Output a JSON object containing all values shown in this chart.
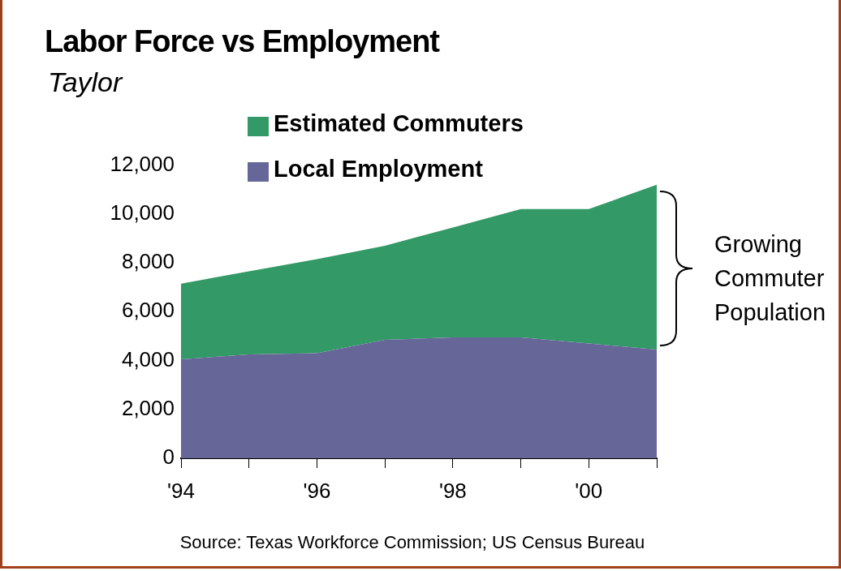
{
  "chart_data": {
    "type": "area",
    "title": "Labor Force vs Employment",
    "subtitle": "Taylor",
    "categories": [
      "'94",
      null,
      "'96",
      null,
      "'98",
      null,
      "'00",
      null
    ],
    "stacked": true,
    "series": [
      {
        "name": "Local Employment",
        "color": "#666699",
        "values": [
          4050,
          4250,
          4300,
          4850,
          4950,
          4950,
          4700,
          4450
        ]
      },
      {
        "name": "Estimated Commuters",
        "color": "#339966",
        "values": [
          3100,
          3400,
          3850,
          3850,
          4500,
          5250,
          5500,
          6750
        ]
      }
    ],
    "ylim": [
      0,
      12000
    ],
    "yticks": [
      {
        "value": 0,
        "label": "0"
      },
      {
        "value": 2000,
        "label": "2,000"
      },
      {
        "value": 4000,
        "label": "4,000"
      },
      {
        "value": 6000,
        "label": "6,000"
      },
      {
        "value": 8000,
        "label": "8,000"
      },
      {
        "value": 10000,
        "label": "10,000"
      },
      {
        "value": 12000,
        "label": "12,000"
      }
    ],
    "grid": false,
    "legend": "top left",
    "annotations": [
      "Growing Commuter Population",
      "Source: Texas Workforce Commission; US Census Bureau"
    ]
  }
}
